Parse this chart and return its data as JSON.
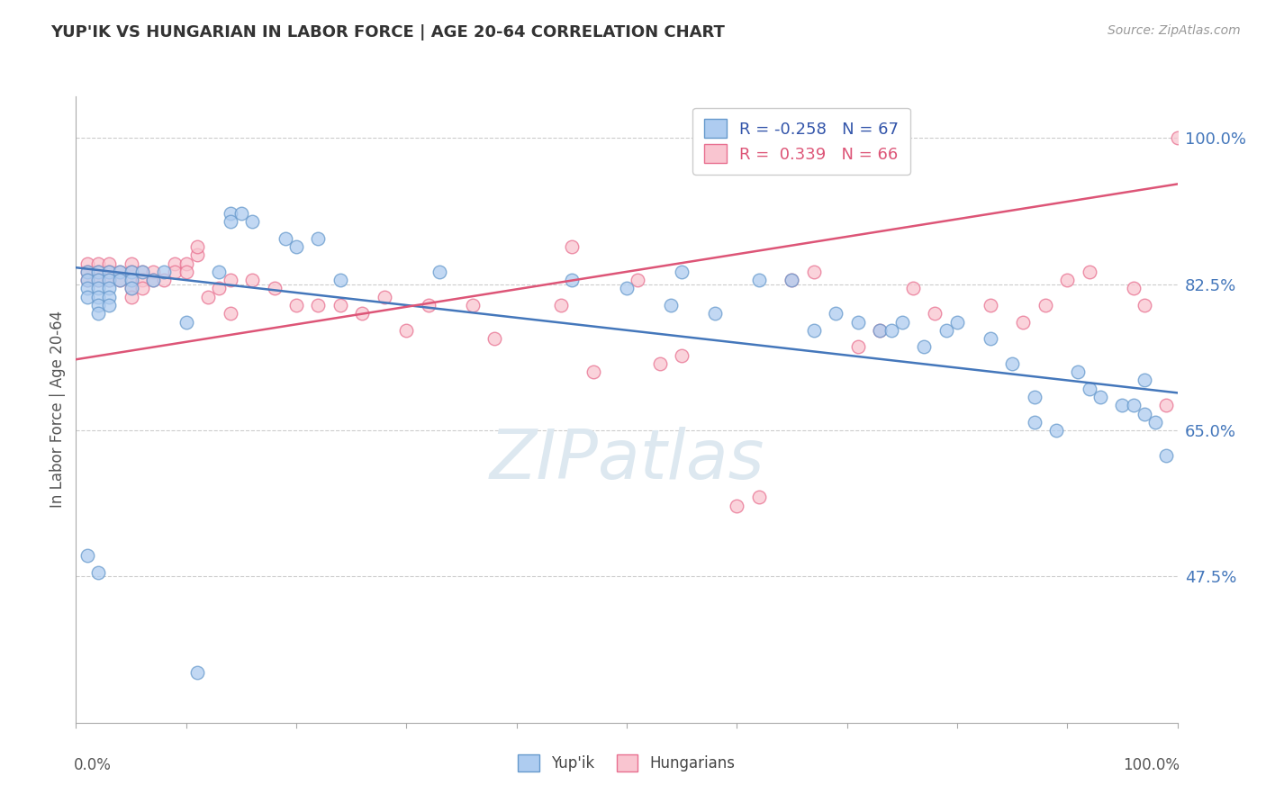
{
  "title": "YUP'IK VS HUNGARIAN IN LABOR FORCE | AGE 20-64 CORRELATION CHART",
  "source_text": "Source: ZipAtlas.com",
  "ylabel": "In Labor Force | Age 20-64",
  "xlim": [
    0.0,
    1.0
  ],
  "ylim": [
    0.3,
    1.05
  ],
  "ytick_positions": [
    0.475,
    0.65,
    0.825,
    1.0
  ],
  "ytick_labels": [
    "47.5%",
    "65.0%",
    "82.5%",
    "100.0%"
  ],
  "legend_labels": [
    "Yup'ik",
    "Hungarians"
  ],
  "blue_color": "#aeccf0",
  "pink_color": "#f9c5d0",
  "blue_edge_color": "#6699cc",
  "pink_edge_color": "#e87090",
  "blue_line_color": "#4477bb",
  "pink_line_color": "#dd5577",
  "legend_text_color": "#3355aa",
  "ytick_color": "#4477bb",
  "title_color": "#333333",
  "source_color": "#999999",
  "watermark_color": "#dde8f0",
  "grid_color": "#cccccc",
  "spine_color": "#aaaaaa",
  "label_color": "#555555",
  "watermark_text": "ZIPatlas",
  "blue_R": -0.258,
  "blue_N": 67,
  "pink_R": 0.339,
  "pink_N": 66,
  "blue_line_y0": 0.845,
  "blue_line_y1": 0.695,
  "pink_line_y0": 0.735,
  "pink_line_y1": 0.945,
  "blue_x": [
    0.01,
    0.01,
    0.01,
    0.01,
    0.02,
    0.02,
    0.02,
    0.02,
    0.02,
    0.02,
    0.03,
    0.03,
    0.03,
    0.03,
    0.03,
    0.04,
    0.04,
    0.05,
    0.05,
    0.05,
    0.06,
    0.07,
    0.08,
    0.1,
    0.13,
    0.14,
    0.14,
    0.15,
    0.16,
    0.19,
    0.2,
    0.22,
    0.24,
    0.33,
    0.01,
    0.02,
    0.45,
    0.5,
    0.54,
    0.55,
    0.58,
    0.62,
    0.65,
    0.67,
    0.69,
    0.71,
    0.73,
    0.74,
    0.75,
    0.77,
    0.79,
    0.8,
    0.83,
    0.85,
    0.87,
    0.87,
    0.89,
    0.91,
    0.92,
    0.93,
    0.95,
    0.96,
    0.97,
    0.97,
    0.98,
    0.99,
    0.11
  ],
  "blue_y": [
    0.84,
    0.83,
    0.82,
    0.81,
    0.84,
    0.83,
    0.82,
    0.81,
    0.8,
    0.79,
    0.84,
    0.83,
    0.82,
    0.81,
    0.8,
    0.84,
    0.83,
    0.84,
    0.83,
    0.82,
    0.84,
    0.83,
    0.84,
    0.78,
    0.84,
    0.91,
    0.9,
    0.91,
    0.9,
    0.88,
    0.87,
    0.88,
    0.83,
    0.84,
    0.5,
    0.48,
    0.83,
    0.82,
    0.8,
    0.84,
    0.79,
    0.83,
    0.83,
    0.77,
    0.79,
    0.78,
    0.77,
    0.77,
    0.78,
    0.75,
    0.77,
    0.78,
    0.76,
    0.73,
    0.69,
    0.66,
    0.65,
    0.72,
    0.7,
    0.69,
    0.68,
    0.68,
    0.67,
    0.71,
    0.66,
    0.62,
    0.36
  ],
  "pink_x": [
    0.01,
    0.01,
    0.01,
    0.02,
    0.02,
    0.02,
    0.03,
    0.03,
    0.03,
    0.04,
    0.04,
    0.05,
    0.05,
    0.05,
    0.05,
    0.05,
    0.06,
    0.06,
    0.06,
    0.07,
    0.07,
    0.08,
    0.09,
    0.09,
    0.1,
    0.1,
    0.11,
    0.11,
    0.12,
    0.13,
    0.14,
    0.14,
    0.16,
    0.18,
    0.2,
    0.22,
    0.24,
    0.26,
    0.28,
    0.3,
    0.32,
    0.36,
    0.38,
    0.44,
    0.47,
    0.51,
    0.55,
    0.6,
    0.65,
    0.67,
    0.71,
    0.73,
    0.76,
    0.78,
    0.83,
    0.86,
    0.88,
    0.9,
    0.92,
    0.96,
    0.97,
    0.99,
    1.0,
    0.45,
    0.53,
    0.62
  ],
  "pink_y": [
    0.85,
    0.84,
    0.83,
    0.85,
    0.84,
    0.83,
    0.85,
    0.84,
    0.83,
    0.84,
    0.83,
    0.85,
    0.84,
    0.83,
    0.82,
    0.81,
    0.84,
    0.83,
    0.82,
    0.84,
    0.83,
    0.83,
    0.85,
    0.84,
    0.85,
    0.84,
    0.86,
    0.87,
    0.81,
    0.82,
    0.83,
    0.79,
    0.83,
    0.82,
    0.8,
    0.8,
    0.8,
    0.79,
    0.81,
    0.77,
    0.8,
    0.8,
    0.76,
    0.8,
    0.72,
    0.83,
    0.74,
    0.56,
    0.83,
    0.84,
    0.75,
    0.77,
    0.82,
    0.79,
    0.8,
    0.78,
    0.8,
    0.83,
    0.84,
    0.82,
    0.8,
    0.68,
    1.0,
    0.87,
    0.73,
    0.57
  ]
}
